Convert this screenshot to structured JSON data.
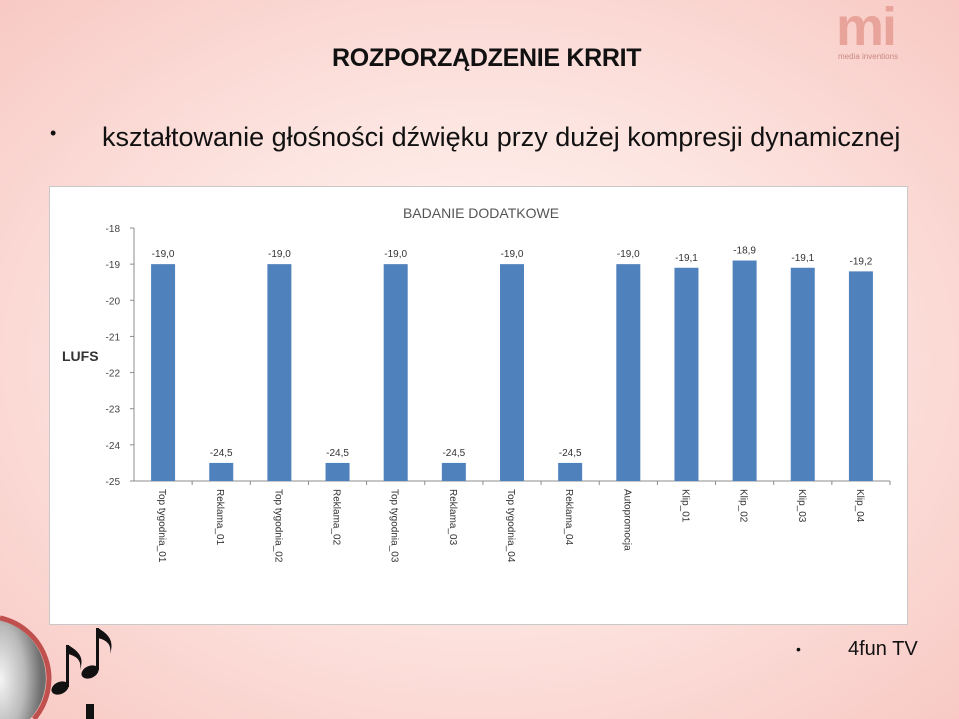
{
  "slide": {
    "title": "ROZPORZĄDZENIE KRRIT",
    "bullet_main": "kształtowanie głośności dźwięku przy dużej kompresji dynamicznej",
    "bullet_foot": "4fun TV",
    "bullet_symbol": "•"
  },
  "logo": {
    "mark": "mi",
    "text": "media inventions",
    "color": "#e8a49b"
  },
  "chart_data": {
    "type": "bar",
    "title": "BADANIE DODATKOWE",
    "ylabel": "LUFS",
    "xlabel": "",
    "categories": [
      "Top tygodnia_01",
      "Reklama_01",
      "Top tygodnia_02",
      "Reklama_02",
      "Top tygodnia_03",
      "Reklama_03",
      "Top tygodnia_04",
      "Reklama_04",
      "Autopromocja",
      "Klip_01",
      "Klip_02",
      "Klip_03",
      "Klip_04"
    ],
    "values": [
      -19.0,
      -24.5,
      -19.0,
      -24.5,
      -19.0,
      -24.5,
      -19.0,
      -24.5,
      -19.0,
      -19.1,
      -18.9,
      -19.1,
      -19.2
    ],
    "data_labels": [
      "-19,0",
      "-24,5",
      "-19,0",
      "-24,5",
      "-19,0",
      "-24,5",
      "-19,0",
      "-24,5",
      "-19,0",
      "-19,1",
      "-18,9",
      "-19,1",
      "-19,2"
    ],
    "ylim": [
      -25,
      -18
    ],
    "yticks": [
      "-18",
      "-19",
      "-20",
      "-21",
      "-22",
      "-23",
      "-24",
      "-25"
    ],
    "grid": false,
    "bar_color": "#4f81bd"
  }
}
